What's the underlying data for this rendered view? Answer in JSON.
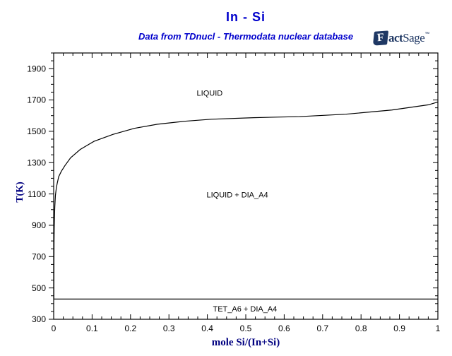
{
  "page": {
    "background": "#FFFFFF"
  },
  "header": {
    "title": "In - Si",
    "subtitle": "Data from TDnucl - Thermodata nuclear database",
    "title_color": "#0000CC",
    "subtitle_color": "#0000CC"
  },
  "logo": {
    "flag_letter": "F",
    "fact_rest": "act",
    "sage": "Sage",
    "tm": "™",
    "color": "#1F3864"
  },
  "chart_data": {
    "type": "line",
    "title": "In - Si",
    "xlabel": "mole Si/(In+Si)",
    "ylabel": "T(K)",
    "xlim": [
      0,
      1
    ],
    "ylim": [
      300,
      2000
    ],
    "grid": false,
    "axis_color": "#000000",
    "line_color": "#000000",
    "label_color": "#000000",
    "axis_title_color": "#000080",
    "x_major_ticks": {
      "values": [
        0,
        0.1,
        0.2,
        0.3,
        0.4,
        0.5,
        0.6,
        0.7,
        0.8,
        0.9,
        1
      ],
      "labels": [
        "0",
        "0.1",
        "0.2",
        "0.3",
        "0.4",
        "0.5",
        "0.6",
        "0.7",
        "0.8",
        "0.9",
        "1"
      ]
    },
    "x_minor_step": 0.025,
    "y_major_ticks": {
      "values": [
        300,
        500,
        700,
        900,
        1100,
        1300,
        1500,
        1700,
        1900
      ],
      "labels": [
        "300",
        "500",
        "700",
        "900",
        "1100",
        "1300",
        "1500",
        "1700",
        "1900"
      ]
    },
    "y_minor_step": 50,
    "series": [
      {
        "name": "liquidus",
        "points": [
          [
            0.0004,
            429
          ],
          [
            0.0007,
            650
          ],
          [
            0.001,
            800
          ],
          [
            0.0014,
            880
          ],
          [
            0.002,
            950
          ],
          [
            0.003,
            1020
          ],
          [
            0.0045,
            1090
          ],
          [
            0.007,
            1140
          ],
          [
            0.009,
            1165
          ],
          [
            0.013,
            1210
          ],
          [
            0.02,
            1245
          ],
          [
            0.029,
            1280
          ],
          [
            0.044,
            1331
          ],
          [
            0.069,
            1384
          ],
          [
            0.105,
            1436
          ],
          [
            0.154,
            1480
          ],
          [
            0.21,
            1519
          ],
          [
            0.27,
            1545
          ],
          [
            0.34,
            1564
          ],
          [
            0.41,
            1577
          ],
          [
            0.52,
            1587
          ],
          [
            0.64,
            1594
          ],
          [
            0.76,
            1609
          ],
          [
            0.88,
            1636
          ],
          [
            0.975,
            1669
          ],
          [
            1.0,
            1687
          ]
        ]
      },
      {
        "name": "eutectic-invariant",
        "points": [
          [
            0,
            429
          ],
          [
            1,
            429
          ]
        ]
      }
    ],
    "region_labels": [
      {
        "text": "LIQUID",
        "x": 0.406,
        "T": 1745
      },
      {
        "text": "LIQUID + DIA_A4",
        "x": 0.478,
        "T": 1095
      },
      {
        "text": "TET_A6 + DIA_A4",
        "x": 0.498,
        "T": 368
      }
    ]
  }
}
